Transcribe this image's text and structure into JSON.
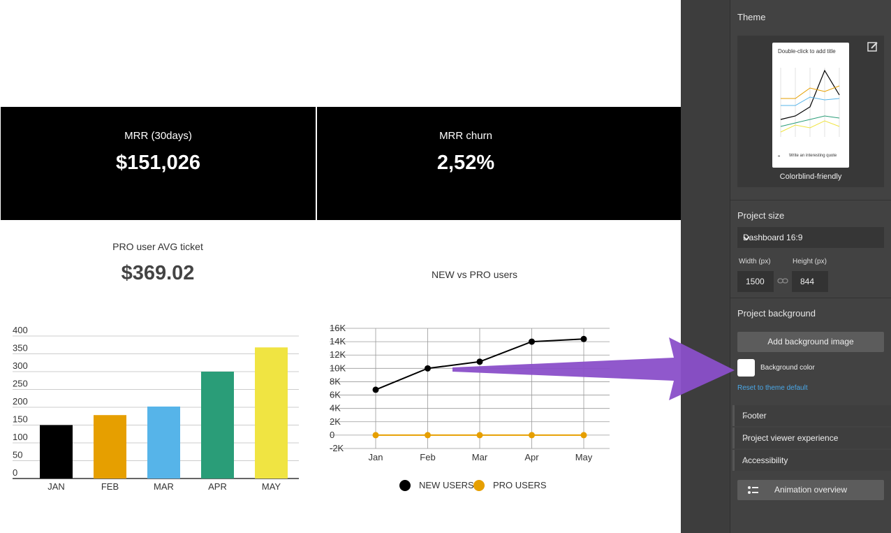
{
  "kpis": [
    {
      "label": "MRR (30days)",
      "value": "$151,026"
    },
    {
      "label": "MRR churn",
      "value": "2,52%"
    }
  ],
  "ticket": {
    "label": "PRO user AVG ticket",
    "value": "$369.02"
  },
  "line_title": "NEW vs PRO users",
  "chart_data": [
    {
      "type": "bar",
      "categories": [
        "JAN",
        "FEB",
        "MAR",
        "APR",
        "MAY"
      ],
      "values": [
        150,
        178,
        202,
        300,
        368
      ],
      "colors": [
        "#000000",
        "#e69f00",
        "#56b4e9",
        "#2a9d78",
        "#f0e442"
      ],
      "ylim": [
        0,
        400
      ],
      "yticks": [
        "0",
        "50",
        "100",
        "150",
        "200",
        "250",
        "300",
        "350",
        "400"
      ],
      "grid": true
    },
    {
      "type": "line",
      "x": [
        "Jan",
        "Feb",
        "Mar",
        "Apr",
        "May"
      ],
      "series": [
        {
          "name": "NEW USERS",
          "values": [
            6800,
            10000,
            11000,
            14000,
            14400
          ],
          "color": "#000000"
        },
        {
          "name": "PRO USERS",
          "values": [
            0,
            0,
            0,
            0,
            0
          ],
          "color": "#e69f00"
        }
      ],
      "ylim": [
        -2000,
        16000
      ],
      "yticks": [
        "-2K",
        "0",
        "2K",
        "4K",
        "6K",
        "8K",
        "10K",
        "12K",
        "14K",
        "16K"
      ],
      "legend": "bottom",
      "grid": true
    }
  ],
  "sidebar": {
    "theme_title": "Theme",
    "theme_name": "Colorblind-friendly",
    "thumb_title": "Double-click to add title",
    "thumb_quote": "Write an interesting quote",
    "project_size_title": "Project size",
    "project_size_value": "Dashboard 16:9",
    "width_label": "Width (px)",
    "height_label": "Height (px)",
    "width_value": "1500",
    "height_value": "844",
    "background_title": "Project background",
    "add_bg_label": "Add background image",
    "bg_color_label": "Background color",
    "reset_label": "Reset to theme default",
    "accordions": [
      "Footer",
      "Project viewer experience",
      "Accessibility"
    ],
    "animation_label": "Animation overview"
  },
  "colors": {
    "accent_arrow": "#8a4fc9",
    "link": "#4aa8e8"
  }
}
